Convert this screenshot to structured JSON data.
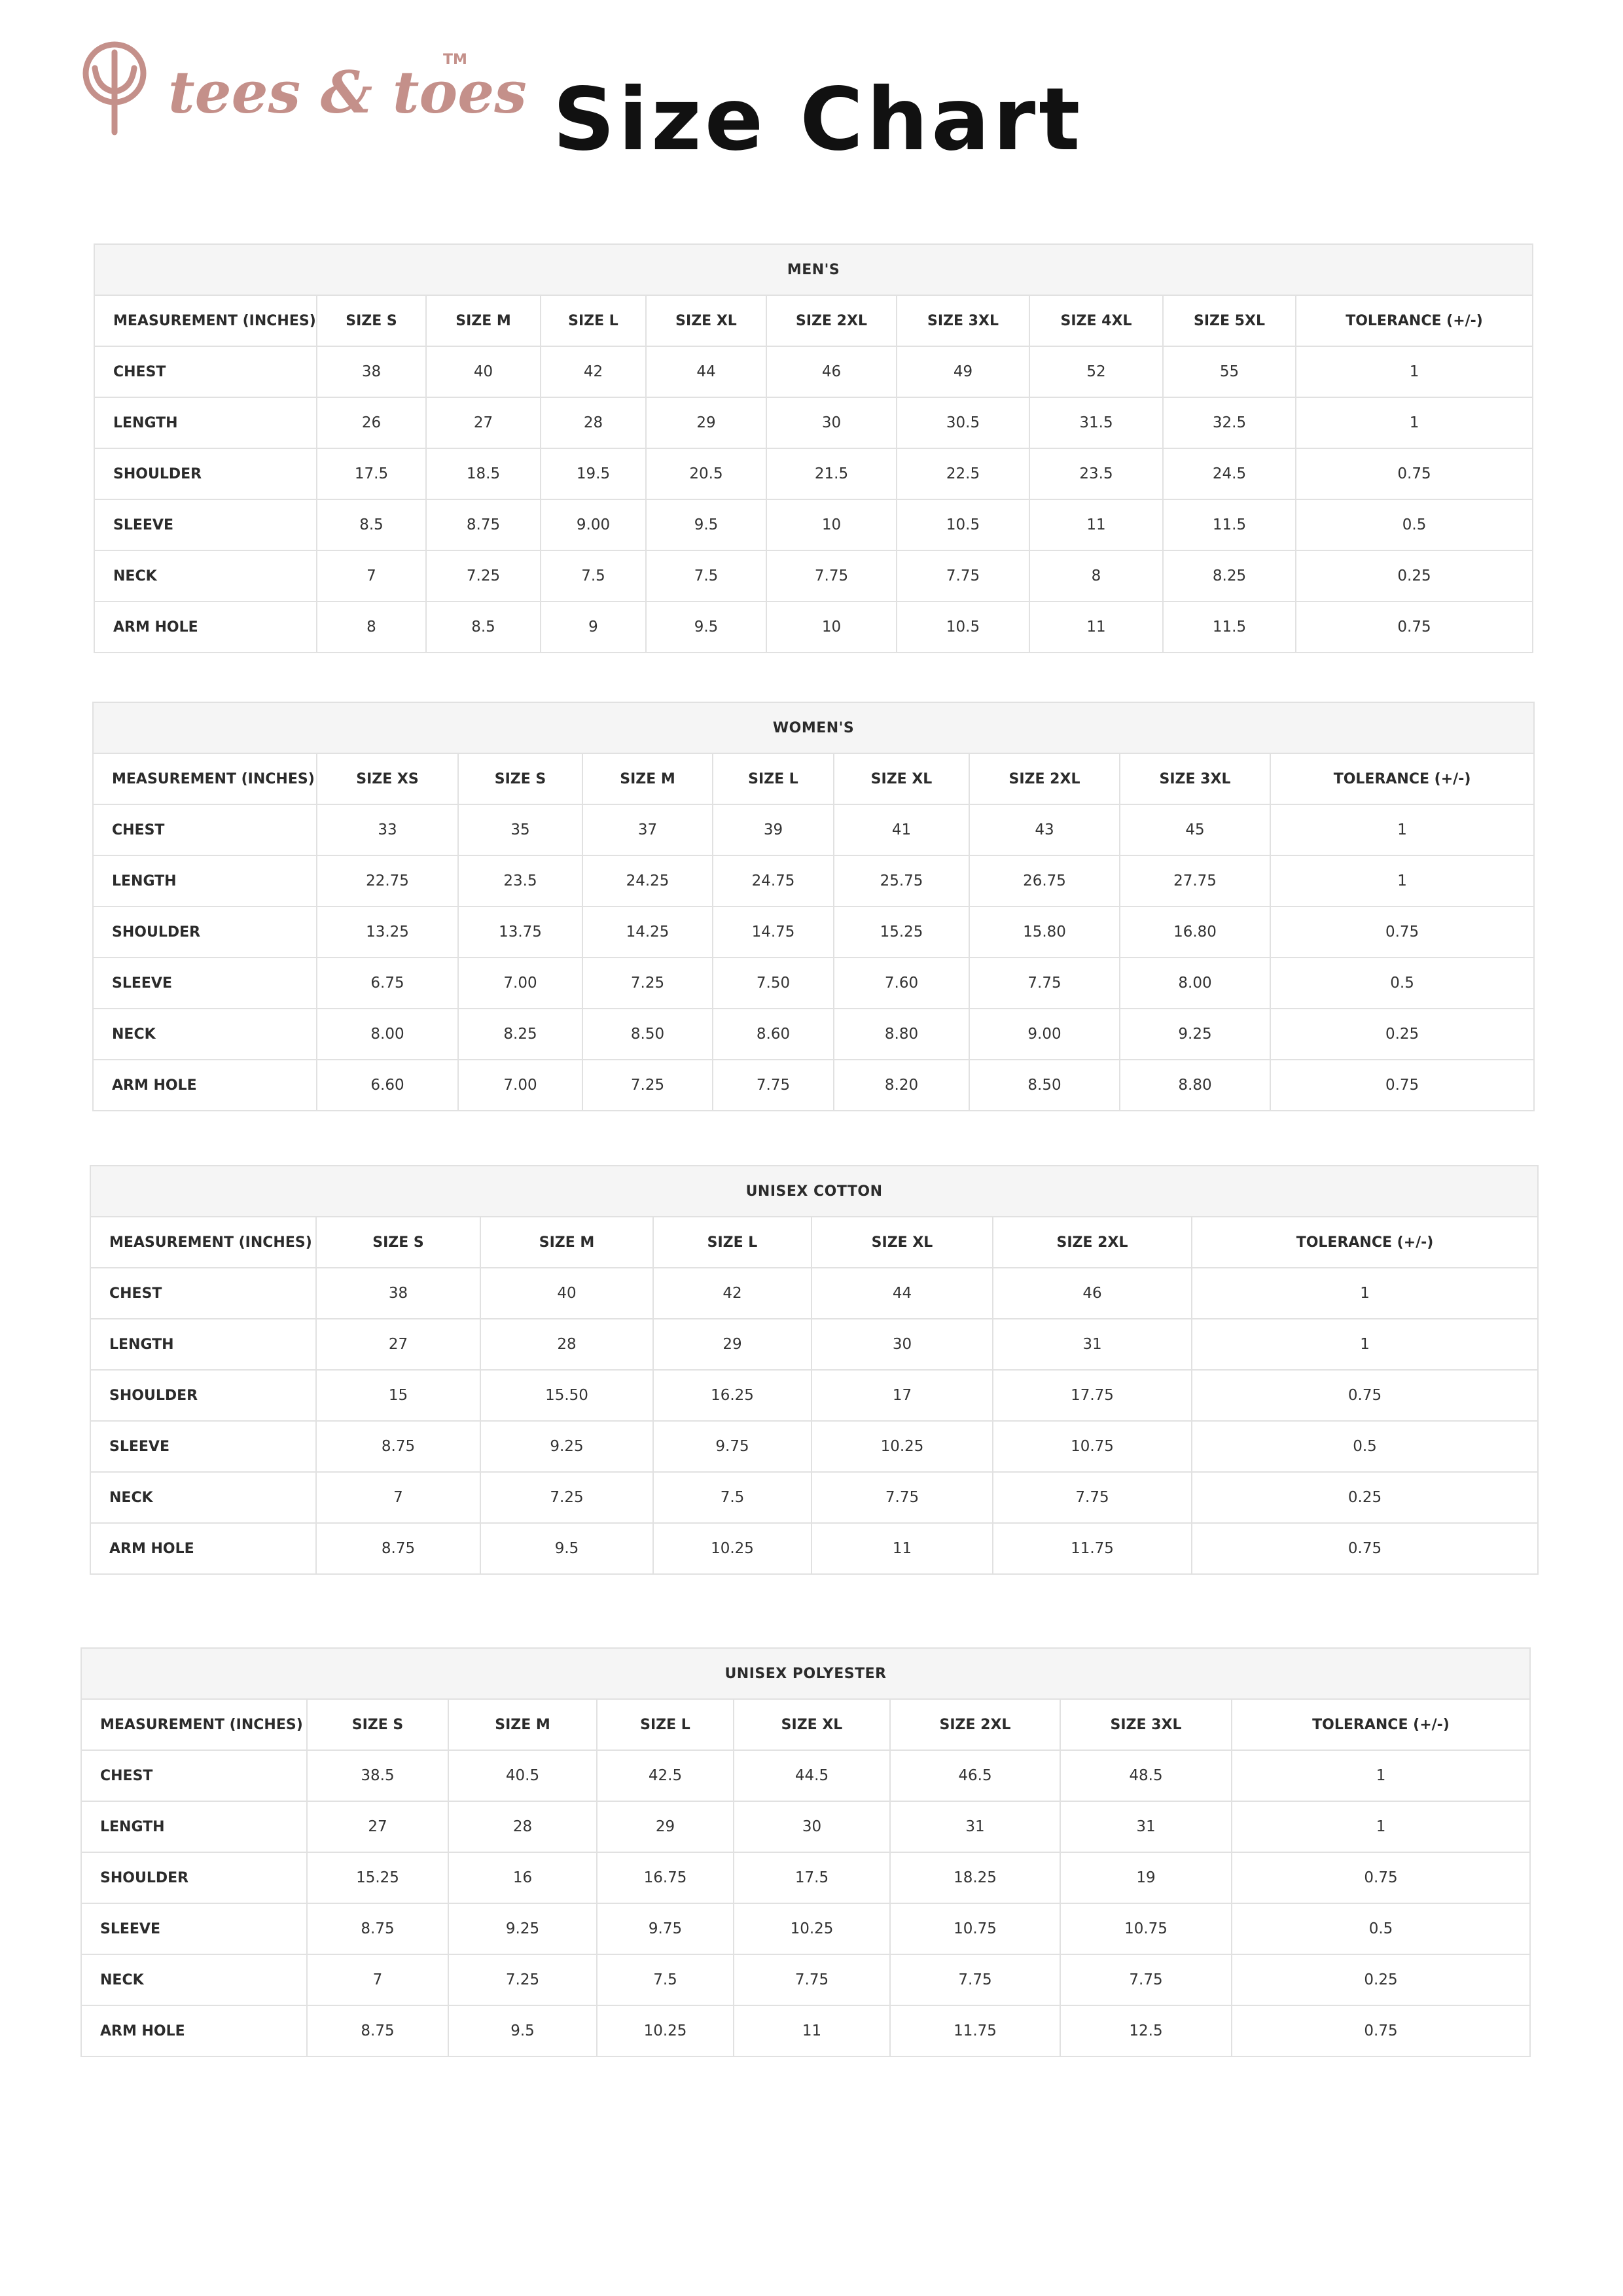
{
  "brand": {
    "logo_text": "tees & toes",
    "trademark": "TM",
    "logo_color": "#c4908a"
  },
  "page_title": "Size Chart",
  "tables": [
    {
      "title": "MEN'S",
      "headers": [
        "MEASUREMENT (INCHES)",
        "SIZE S",
        "SIZE M",
        "SIZE L",
        "SIZE XL",
        "SIZE 2XL",
        "SIZE 3XL",
        "SIZE 4XL",
        "SIZE 5XL",
        "TOLERANCE (+/-)"
      ],
      "rows": [
        [
          "CHEST",
          "38",
          "40",
          "42",
          "44",
          "46",
          "49",
          "52",
          "55",
          "1"
        ],
        [
          "LENGTH",
          "26",
          "27",
          "28",
          "29",
          "30",
          "30.5",
          "31.5",
          "32.5",
          "1"
        ],
        [
          "SHOULDER",
          "17.5",
          "18.5",
          "19.5",
          "20.5",
          "21.5",
          "22.5",
          "23.5",
          "24.5",
          "0.75"
        ],
        [
          "SLEEVE",
          "8.5",
          "8.75",
          "9.00",
          "9.5",
          "10",
          "10.5",
          "11",
          "11.5",
          "0.5"
        ],
        [
          "NECK",
          "7",
          "7.25",
          "7.5",
          "7.5",
          "7.75",
          "7.75",
          "8",
          "8.25",
          "0.25"
        ],
        [
          "ARM HOLE",
          "8",
          "8.5",
          "9",
          "9.5",
          "10",
          "10.5",
          "11",
          "11.5",
          "0.75"
        ]
      ]
    },
    {
      "title": "WOMEN'S",
      "headers": [
        "MEASUREMENT (INCHES)",
        "SIZE XS",
        "SIZE S",
        "SIZE M",
        "SIZE L",
        "SIZE XL",
        "SIZE 2XL",
        "SIZE 3XL",
        "TOLERANCE (+/-)"
      ],
      "rows": [
        [
          "CHEST",
          "33",
          "35",
          "37",
          "39",
          "41",
          "43",
          "45",
          "1"
        ],
        [
          "LENGTH",
          "22.75",
          "23.5",
          "24.25",
          "24.75",
          "25.75",
          "26.75",
          "27.75",
          "1"
        ],
        [
          "SHOULDER",
          "13.25",
          "13.75",
          "14.25",
          "14.75",
          "15.25",
          "15.80",
          "16.80",
          "0.75"
        ],
        [
          "SLEEVE",
          "6.75",
          "7.00",
          "7.25",
          "7.50",
          "7.60",
          "7.75",
          "8.00",
          "0.5"
        ],
        [
          "NECK",
          "8.00",
          "8.25",
          "8.50",
          "8.60",
          "8.80",
          "9.00",
          "9.25",
          "0.25"
        ],
        [
          "ARM HOLE",
          "6.60",
          "7.00",
          "7.25",
          "7.75",
          "8.20",
          "8.50",
          "8.80",
          "0.75"
        ]
      ]
    },
    {
      "title": "UNISEX COTTON",
      "headers": [
        "MEASUREMENT (INCHES)",
        "SIZE S",
        "SIZE M",
        "SIZE L",
        "SIZE XL",
        "SIZE 2XL",
        "TOLERANCE (+/-)"
      ],
      "rows": [
        [
          "CHEST",
          "38",
          "40",
          "42",
          "44",
          "46",
          "1"
        ],
        [
          "LENGTH",
          "27",
          "28",
          "29",
          "30",
          "31",
          "1"
        ],
        [
          "SHOULDER",
          "15",
          "15.50",
          "16.25",
          "17",
          "17.75",
          "0.75"
        ],
        [
          "SLEEVE",
          "8.75",
          "9.25",
          "9.75",
          "10.25",
          "10.75",
          "0.5"
        ],
        [
          "NECK",
          "7",
          "7.25",
          "7.5",
          "7.75",
          "7.75",
          "0.25"
        ],
        [
          "ARM HOLE",
          "8.75",
          "9.5",
          "10.25",
          "11",
          "11.75",
          "0.75"
        ]
      ]
    },
    {
      "title": "UNISEX POLYESTER",
      "headers": [
        "MEASUREMENT (INCHES)",
        "SIZE S",
        "SIZE M",
        "SIZE L",
        "SIZE XL",
        "SIZE 2XL",
        "SIZE 3XL",
        "TOLERANCE (+/-)"
      ],
      "rows": [
        [
          "CHEST",
          "38.5",
          "40.5",
          "42.5",
          "44.5",
          "46.5",
          "48.5",
          "1"
        ],
        [
          "LENGTH",
          "27",
          "28",
          "29",
          "30",
          "31",
          "31",
          "1"
        ],
        [
          "SHOULDER",
          "15.25",
          "16",
          "16.75",
          "17.5",
          "18.25",
          "19",
          "0.75"
        ],
        [
          "SLEEVE",
          "8.75",
          "9.25",
          "9.75",
          "10.25",
          "10.75",
          "10.75",
          "0.5"
        ],
        [
          "NECK",
          "7",
          "7.25",
          "7.5",
          "7.75",
          "7.75",
          "7.75",
          "0.25"
        ],
        [
          "ARM HOLE",
          "8.75",
          "9.5",
          "10.25",
          "11",
          "11.75",
          "12.5",
          "0.75"
        ]
      ]
    }
  ]
}
